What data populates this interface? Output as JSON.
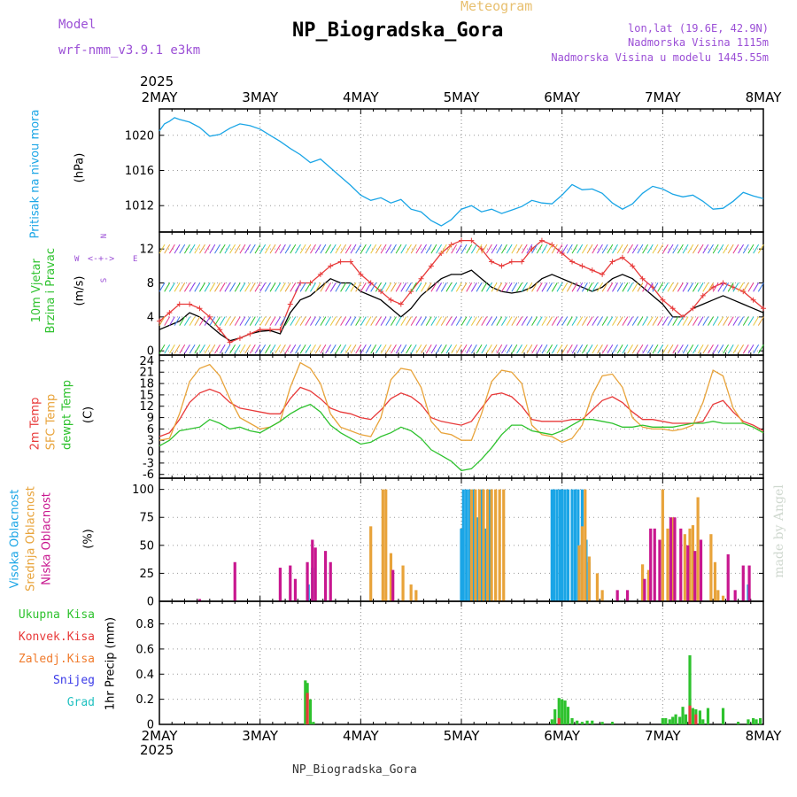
{
  "header": {
    "model_label": "Model",
    "model_name": "wrf-nmm_v3.9.1 e3km",
    "subtitle": "Meteogram",
    "station": "NP_Biogradska_Gora",
    "lonlat": "lon,lat (19.6E, 42.9N)",
    "elevation": "Nadmorska Visina 1115m",
    "model_elevation": "Nadmorska Visina u modelu 1445.55m",
    "footer_station": "NP_Biogradska_Gora",
    "watermark": "made by Angel"
  },
  "time_axis": {
    "year": "2025",
    "day_labels": [
      "2MAY",
      "3MAY",
      "4MAY",
      "5MAY",
      "6MAY",
      "7MAY",
      "8MAY"
    ]
  },
  "chart_data": [
    {
      "type": "line",
      "title": "Pritisak na nivou mora",
      "ylabel": "(hPa)",
      "ylim": [
        1009,
        1023
      ],
      "yticks": [
        "1020",
        "1016",
        "1012"
      ],
      "x_days": [
        0,
        0.05,
        0.1,
        0.15,
        0.2,
        0.3,
        0.4,
        0.5,
        0.6,
        0.7,
        0.8,
        0.9,
        1.0,
        1.1,
        1.2,
        1.3,
        1.4,
        1.5,
        1.6,
        1.7,
        1.8,
        1.9,
        2.0,
        2.1,
        2.2,
        2.3,
        2.4,
        2.5,
        2.6,
        2.7,
        2.8,
        2.9,
        3.0,
        3.1,
        3.2,
        3.3,
        3.4,
        3.5,
        3.6,
        3.7,
        3.8,
        3.9,
        4.0,
        4.1,
        4.2,
        4.3,
        4.4,
        4.5,
        4.6,
        4.7,
        4.8,
        4.9,
        5.0,
        5.1,
        5.2,
        5.3,
        5.4,
        5.5,
        5.6,
        5.7,
        5.8,
        5.9,
        6.0
      ],
      "series": [
        {
          "name": "sea level pressure",
          "color": "#1aa5e6",
          "values": [
            1020.5,
            1021.3,
            1021.6,
            1022.0,
            1021.8,
            1021.5,
            1020.9,
            1019.9,
            1020.1,
            1020.8,
            1021.3,
            1021.1,
            1020.7,
            1020.0,
            1019.3,
            1018.5,
            1017.8,
            1016.9,
            1017.3,
            1016.3,
            1015.3,
            1014.3,
            1013.2,
            1012.6,
            1012.9,
            1012.3,
            1012.7,
            1011.6,
            1011.3,
            1010.3,
            1009.7,
            1010.4,
            1011.6,
            1012.0,
            1011.3,
            1011.6,
            1011.1,
            1011.5,
            1011.9,
            1012.6,
            1012.3,
            1012.2,
            1013.2,
            1014.4,
            1013.8,
            1013.9,
            1013.4,
            1012.3,
            1011.6,
            1012.2,
            1013.4,
            1014.2,
            1013.9,
            1013.3,
            1013.0,
            1013.2,
            1012.5,
            1011.6,
            1011.7,
            1012.5,
            1013.5,
            1013.1,
            1012.8
          ]
        }
      ]
    },
    {
      "type": "line",
      "title": "10m Vjetar Brzina i Pravac",
      "ylabel": "(m/s)",
      "ylim": [
        -0.5,
        14
      ],
      "yticks": [
        "0",
        "4",
        "8",
        "12"
      ],
      "compass": {
        "n": "N",
        "s": "S",
        "e": "E",
        "w": "W"
      },
      "x_days": [
        0,
        0.1,
        0.2,
        0.3,
        0.4,
        0.5,
        0.6,
        0.7,
        0.8,
        0.9,
        1.0,
        1.1,
        1.2,
        1.3,
        1.4,
        1.5,
        1.6,
        1.7,
        1.8,
        1.9,
        2.0,
        2.1,
        2.2,
        2.3,
        2.4,
        2.5,
        2.6,
        2.7,
        2.8,
        2.9,
        3.0,
        3.1,
        3.2,
        3.3,
        3.4,
        3.5,
        3.6,
        3.7,
        3.8,
        3.9,
        4.0,
        4.1,
        4.2,
        4.3,
        4.4,
        4.5,
        4.6,
        4.7,
        4.8,
        4.9,
        5.0,
        5.1,
        5.2,
        5.3,
        5.4,
        5.5,
        5.6,
        5.7,
        5.8,
        5.9,
        6.0
      ],
      "series": [
        {
          "name": "wind speed",
          "color": "#000000",
          "values": [
            2.5,
            3.0,
            3.5,
            4.5,
            4.0,
            3.0,
            2.0,
            1.2,
            1.5,
            2.0,
            2.3,
            2.4,
            2.0,
            4.5,
            6.0,
            6.5,
            7.5,
            8.5,
            8.0,
            8.0,
            7.0,
            6.5,
            6.0,
            5.0,
            4.0,
            5.0,
            6.5,
            7.5,
            8.5,
            9.0,
            9.0,
            9.5,
            8.5,
            7.5,
            7.0,
            6.8,
            7.0,
            7.5,
            8.5,
            9.0,
            8.5,
            8.0,
            7.5,
            7.0,
            7.5,
            8.5,
            9.0,
            8.5,
            7.5,
            6.5,
            5.5,
            4.0,
            4.0,
            5.0,
            5.5,
            6.0,
            6.5,
            6.0,
            5.5,
            5.0,
            4.5
          ]
        },
        {
          "name": "wind gust",
          "color": "#e83a3a",
          "values": [
            3.5,
            4.5,
            5.5,
            5.5,
            5.0,
            4.0,
            2.5,
            1.0,
            1.5,
            2.0,
            2.5,
            2.5,
            2.5,
            5.5,
            8.0,
            8.0,
            9.0,
            10.0,
            10.5,
            10.5,
            9.0,
            8.0,
            7.0,
            6.0,
            5.5,
            7.0,
            8.5,
            10.0,
            11.5,
            12.5,
            13.0,
            13.0,
            12.0,
            10.5,
            10.0,
            10.5,
            10.5,
            12.0,
            13.0,
            12.5,
            11.5,
            10.5,
            10.0,
            9.5,
            9.0,
            10.5,
            11.0,
            10.0,
            8.5,
            7.5,
            6.0,
            5.0,
            4.0,
            5.0,
            6.5,
            7.5,
            8.0,
            7.5,
            7.0,
            6.0,
            5.0
          ]
        }
      ]
    },
    {
      "type": "line",
      "title": "2m Temp / SFC Temp / dewpt Temp",
      "ylabel": "(C)",
      "ylim": [
        -7,
        25.5
      ],
      "yticks": [
        "24",
        "21",
        "18",
        "15",
        "12",
        "9",
        "6",
        "3",
        "0",
        "-3",
        "-6"
      ],
      "legend": [
        "2m Temp",
        "SFC Temp",
        "dewpt Temp"
      ],
      "x_days": [
        0,
        0.1,
        0.2,
        0.3,
        0.4,
        0.5,
        0.6,
        0.7,
        0.8,
        0.9,
        1.0,
        1.1,
        1.2,
        1.3,
        1.4,
        1.5,
        1.6,
        1.7,
        1.8,
        1.9,
        2.0,
        2.1,
        2.2,
        2.3,
        2.4,
        2.5,
        2.6,
        2.7,
        2.8,
        2.9,
        3.0,
        3.1,
        3.2,
        3.3,
        3.4,
        3.5,
        3.6,
        3.7,
        3.8,
        3.9,
        4.0,
        4.1,
        4.2,
        4.3,
        4.4,
        4.5,
        4.6,
        4.7,
        4.8,
        4.9,
        5.0,
        5.1,
        5.2,
        5.3,
        5.4,
        5.5,
        5.6,
        5.7,
        5.8,
        5.9,
        6.0
      ],
      "series": [
        {
          "name": "2m Temp",
          "color": "#e83a3a",
          "values": [
            4.0,
            5.0,
            8.5,
            13.0,
            15.5,
            16.5,
            15.5,
            13.0,
            11.5,
            11.0,
            10.5,
            10.0,
            10.0,
            14.0,
            17.0,
            16.0,
            14.0,
            11.5,
            10.5,
            10.0,
            9.0,
            8.5,
            11.0,
            14.0,
            15.5,
            14.5,
            12.5,
            9.0,
            8.0,
            7.5,
            7.0,
            8.0,
            11.5,
            15.0,
            15.5,
            14.5,
            12.0,
            8.5,
            8.0,
            8.0,
            8.0,
            8.5,
            8.5,
            11.0,
            13.5,
            14.5,
            13.0,
            10.5,
            8.5,
            8.5,
            8.0,
            7.5,
            7.5,
            7.5,
            8.0,
            12.5,
            13.5,
            10.5,
            8.0,
            7.0,
            5.5
          ]
        },
        {
          "name": "SFC Temp",
          "color": "#e8a33a",
          "values": [
            3.0,
            3.5,
            10.0,
            18.5,
            22.0,
            23.0,
            20.0,
            14.0,
            9.0,
            7.5,
            6.0,
            6.5,
            8.0,
            17.0,
            23.5,
            22.0,
            18.0,
            10.0,
            6.5,
            5.5,
            4.5,
            4.0,
            9.0,
            19.0,
            22.0,
            21.5,
            17.0,
            8.0,
            5.0,
            4.5,
            3.0,
            3.0,
            10.0,
            18.5,
            21.5,
            21.0,
            18.0,
            7.0,
            4.5,
            4.0,
            2.5,
            3.5,
            7.0,
            15.0,
            20.0,
            20.5,
            17.0,
            9.0,
            6.5,
            6.0,
            6.0,
            5.5,
            6.0,
            7.0,
            13.0,
            21.5,
            20.0,
            11.5,
            7.5,
            6.5,
            5.0
          ]
        },
        {
          "name": "dewpt Temp",
          "color": "#2ec22e",
          "values": [
            1.5,
            3.0,
            5.5,
            6.0,
            6.5,
            8.5,
            7.5,
            6.0,
            6.5,
            5.5,
            5.0,
            6.5,
            8.0,
            10.0,
            11.5,
            12.5,
            10.5,
            7.0,
            5.0,
            3.5,
            2.0,
            2.5,
            4.0,
            5.0,
            6.5,
            5.5,
            3.5,
            0.5,
            -1.0,
            -2.5,
            -5.0,
            -4.5,
            -2.0,
            1.0,
            4.5,
            7.0,
            7.0,
            5.5,
            5.0,
            4.5,
            5.5,
            7.0,
            8.5,
            8.5,
            8.0,
            7.5,
            6.5,
            6.5,
            7.0,
            6.5,
            6.5,
            6.5,
            7.0,
            7.5,
            7.5,
            8.0,
            7.5,
            7.5,
            7.5,
            6.5,
            5.0
          ]
        }
      ]
    },
    {
      "type": "bar",
      "title": "Visoka / Srednja / Niska Oblacnost",
      "ylabel": "(%)",
      "ylim": [
        0,
        110
      ],
      "yticks": [
        "100",
        "75",
        "50",
        "25",
        "0"
      ],
      "legend": [
        "Visoka Oblacnost",
        "Srednja Oblacnost",
        "Niska Oblacnost"
      ],
      "series": [
        {
          "name": "Visoka Oblacnost",
          "color": "#1aa5e6",
          "x_days": [
            1.48,
            1.52,
            3.0,
            3.02,
            3.05,
            3.08,
            3.12,
            3.16,
            3.2,
            3.24,
            3.28,
            3.9,
            3.92,
            3.95,
            3.98,
            4.0,
            4.03,
            4.06,
            4.1,
            4.13,
            4.16,
            4.2,
            4.24,
            4.27,
            5.85
          ],
          "values": [
            15,
            30,
            65,
            100,
            100,
            100,
            100,
            75,
            100,
            65,
            100,
            100,
            100,
            100,
            100,
            100,
            100,
            100,
            100,
            100,
            100,
            100,
            55,
            35,
            15
          ]
        },
        {
          "name": "Srednja Oblacnost",
          "color": "#e8a33a",
          "x_days": [
            2.1,
            2.22,
            2.25,
            2.3,
            2.42,
            2.5,
            2.55,
            3.1,
            3.14,
            3.18,
            3.22,
            3.26,
            3.3,
            3.34,
            3.38,
            3.42,
            4.17,
            4.2,
            4.23,
            4.27,
            4.35,
            4.4,
            4.8,
            4.86,
            5.0,
            5.05,
            5.1,
            5.22,
            5.27,
            5.3,
            5.35,
            5.48,
            5.52,
            5.55,
            5.6
          ],
          "values": [
            67,
            100,
            100,
            43,
            32,
            15,
            10,
            100,
            100,
            100,
            100,
            100,
            100,
            100,
            100,
            100,
            50,
            67,
            100,
            40,
            25,
            10,
            33,
            28,
            100,
            65,
            75,
            60,
            65,
            68,
            93,
            60,
            35,
            10,
            5
          ]
        },
        {
          "name": "Niska Oblacnost",
          "color": "#c8178f",
          "x_days": [
            0.4,
            0.75,
            1.2,
            1.3,
            1.35,
            1.47,
            1.52,
            1.55,
            1.65,
            1.7,
            2.32,
            4.55,
            4.65,
            4.82,
            4.88,
            4.92,
            4.97,
            5.08,
            5.12,
            5.18,
            5.25,
            5.32,
            5.38,
            5.65,
            5.72,
            5.8,
            5.86
          ],
          "values": [
            2,
            35,
            30,
            32,
            20,
            35,
            55,
            48,
            45,
            35,
            28,
            10,
            10,
            20,
            65,
            65,
            55,
            75,
            75,
            65,
            50,
            45,
            55,
            42,
            10,
            32,
            32
          ]
        }
      ]
    },
    {
      "type": "bar",
      "title": "1hr Precip",
      "ylabel": "1hr Precip (mm)",
      "ylim": [
        0,
        0.98
      ],
      "yticks": [
        "0.8",
        "0.6",
        "0.4",
        "0.2",
        "0"
      ],
      "legend": [
        "Ukupna Kisa",
        "Konvek.Kisa",
        "Zaledj.Kisa",
        "Snijeg",
        "Grad"
      ],
      "legend_colors": [
        "#2ec22e",
        "#e83a3a",
        "#f07b2c",
        "#3a3ae8",
        "#20c0c0"
      ],
      "series": [
        {
          "name": "Ukupna Kisa",
          "color": "#2ec22e",
          "x_days": [
            1.45,
            1.47,
            1.5,
            1.53,
            3.9,
            3.93,
            3.97,
            4.0,
            4.03,
            4.06,
            4.1,
            4.15,
            4.2,
            4.25,
            4.3,
            4.4,
            4.5,
            5.0,
            5.03,
            5.07,
            5.1,
            5.13,
            5.17,
            5.2,
            5.23,
            5.27,
            5.3,
            5.33,
            5.37,
            5.4,
            5.45,
            5.6,
            5.75,
            5.85,
            5.9,
            5.93,
            5.97
          ],
          "values": [
            0.35,
            0.33,
            0.2,
            0.02,
            0.04,
            0.12,
            0.21,
            0.2,
            0.19,
            0.14,
            0.05,
            0.03,
            0.02,
            0.03,
            0.03,
            0.02,
            0.02,
            0.05,
            0.05,
            0.04,
            0.06,
            0.08,
            0.06,
            0.14,
            0.08,
            0.55,
            0.13,
            0.12,
            0.11,
            0.04,
            0.13,
            0.13,
            0.02,
            0.04,
            0.05,
            0.04,
            0.05
          ]
        },
        {
          "name": "Konvek.Kisa",
          "color": "#e83a3a",
          "x_days": [
            1.47,
            3.97,
            5.27,
            5.33
          ],
          "values": [
            0.25,
            0.05,
            0.15,
            0.08
          ]
        }
      ]
    }
  ]
}
